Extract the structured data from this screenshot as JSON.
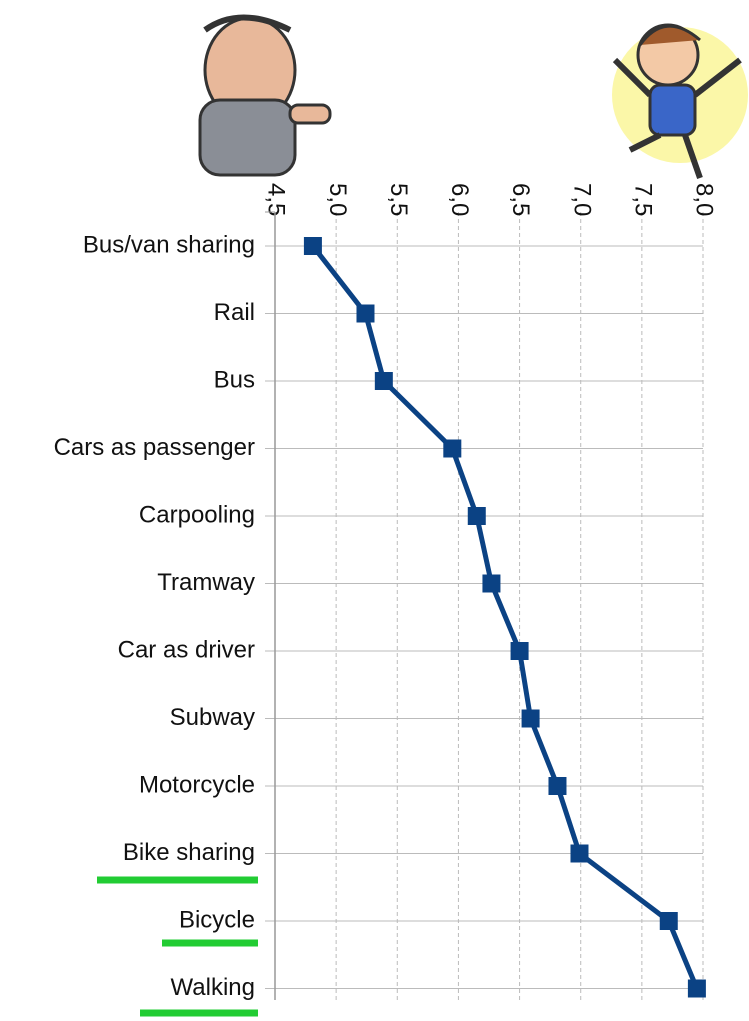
{
  "chart_data": {
    "type": "line",
    "categories": [
      "Bus/van sharing",
      "Rail",
      "Bus",
      "Cars as passenger",
      "Carpooling",
      "Tramway",
      "Car as driver",
      "Subway",
      "Motorcycle",
      "Bike sharing",
      "Bicycle",
      "Walking"
    ],
    "series": [
      {
        "color": "#0b4284",
        "values": [
          4.81,
          5.24,
          5.39,
          5.95,
          6.15,
          6.27,
          6.5,
          6.59,
          6.81,
          6.99,
          7.72,
          7.95
        ]
      }
    ],
    "xlim": [
      4.5,
      8.0
    ],
    "xticks": [
      {
        "value": 4.5,
        "label": "4,5"
      },
      {
        "value": 5.0,
        "label": "5,0"
      },
      {
        "value": 5.5,
        "label": "5,5"
      },
      {
        "value": 6.0,
        "label": "6,0"
      },
      {
        "value": 6.5,
        "label": "6,5"
      },
      {
        "value": 7.0,
        "label": "7,0"
      },
      {
        "value": 7.5,
        "label": "7,5"
      },
      {
        "value": 8.0,
        "label": "8,0"
      }
    ],
    "grid": true
  }
}
